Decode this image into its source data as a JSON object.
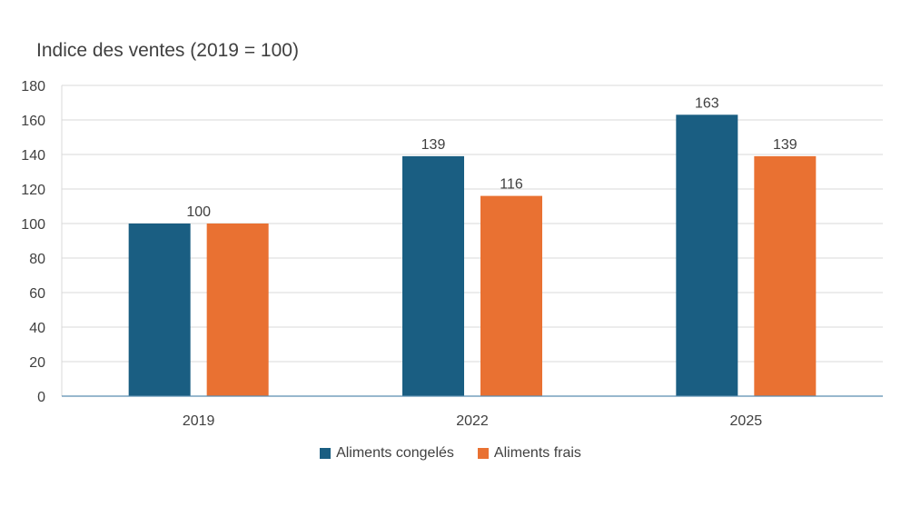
{
  "chart_data": {
    "type": "bar",
    "title": "Indice des ventes (2019 = 100)",
    "xlabel": "",
    "ylabel": "",
    "categories": [
      "2019",
      "2022",
      "2025"
    ],
    "series": [
      {
        "name": "Aliments congelés",
        "values": [
          100,
          139,
          163
        ],
        "data_labels": [
          "100",
          "139",
          "163"
        ],
        "color": "#1a5e82"
      },
      {
        "name": "Aliments frais",
        "values": [
          100,
          116,
          139
        ],
        "data_labels": [
          "",
          "116",
          "139"
        ],
        "color": "#e97132"
      }
    ],
    "ylim": [
      0,
      180
    ],
    "yticks": [
      0,
      20,
      40,
      60,
      80,
      100,
      120,
      140,
      160,
      180
    ],
    "grid": true,
    "legend_position": "bottom",
    "colors": {
      "gridline": "#d9d9d9",
      "axis": "#5b8db0",
      "text": "#404040"
    }
  }
}
